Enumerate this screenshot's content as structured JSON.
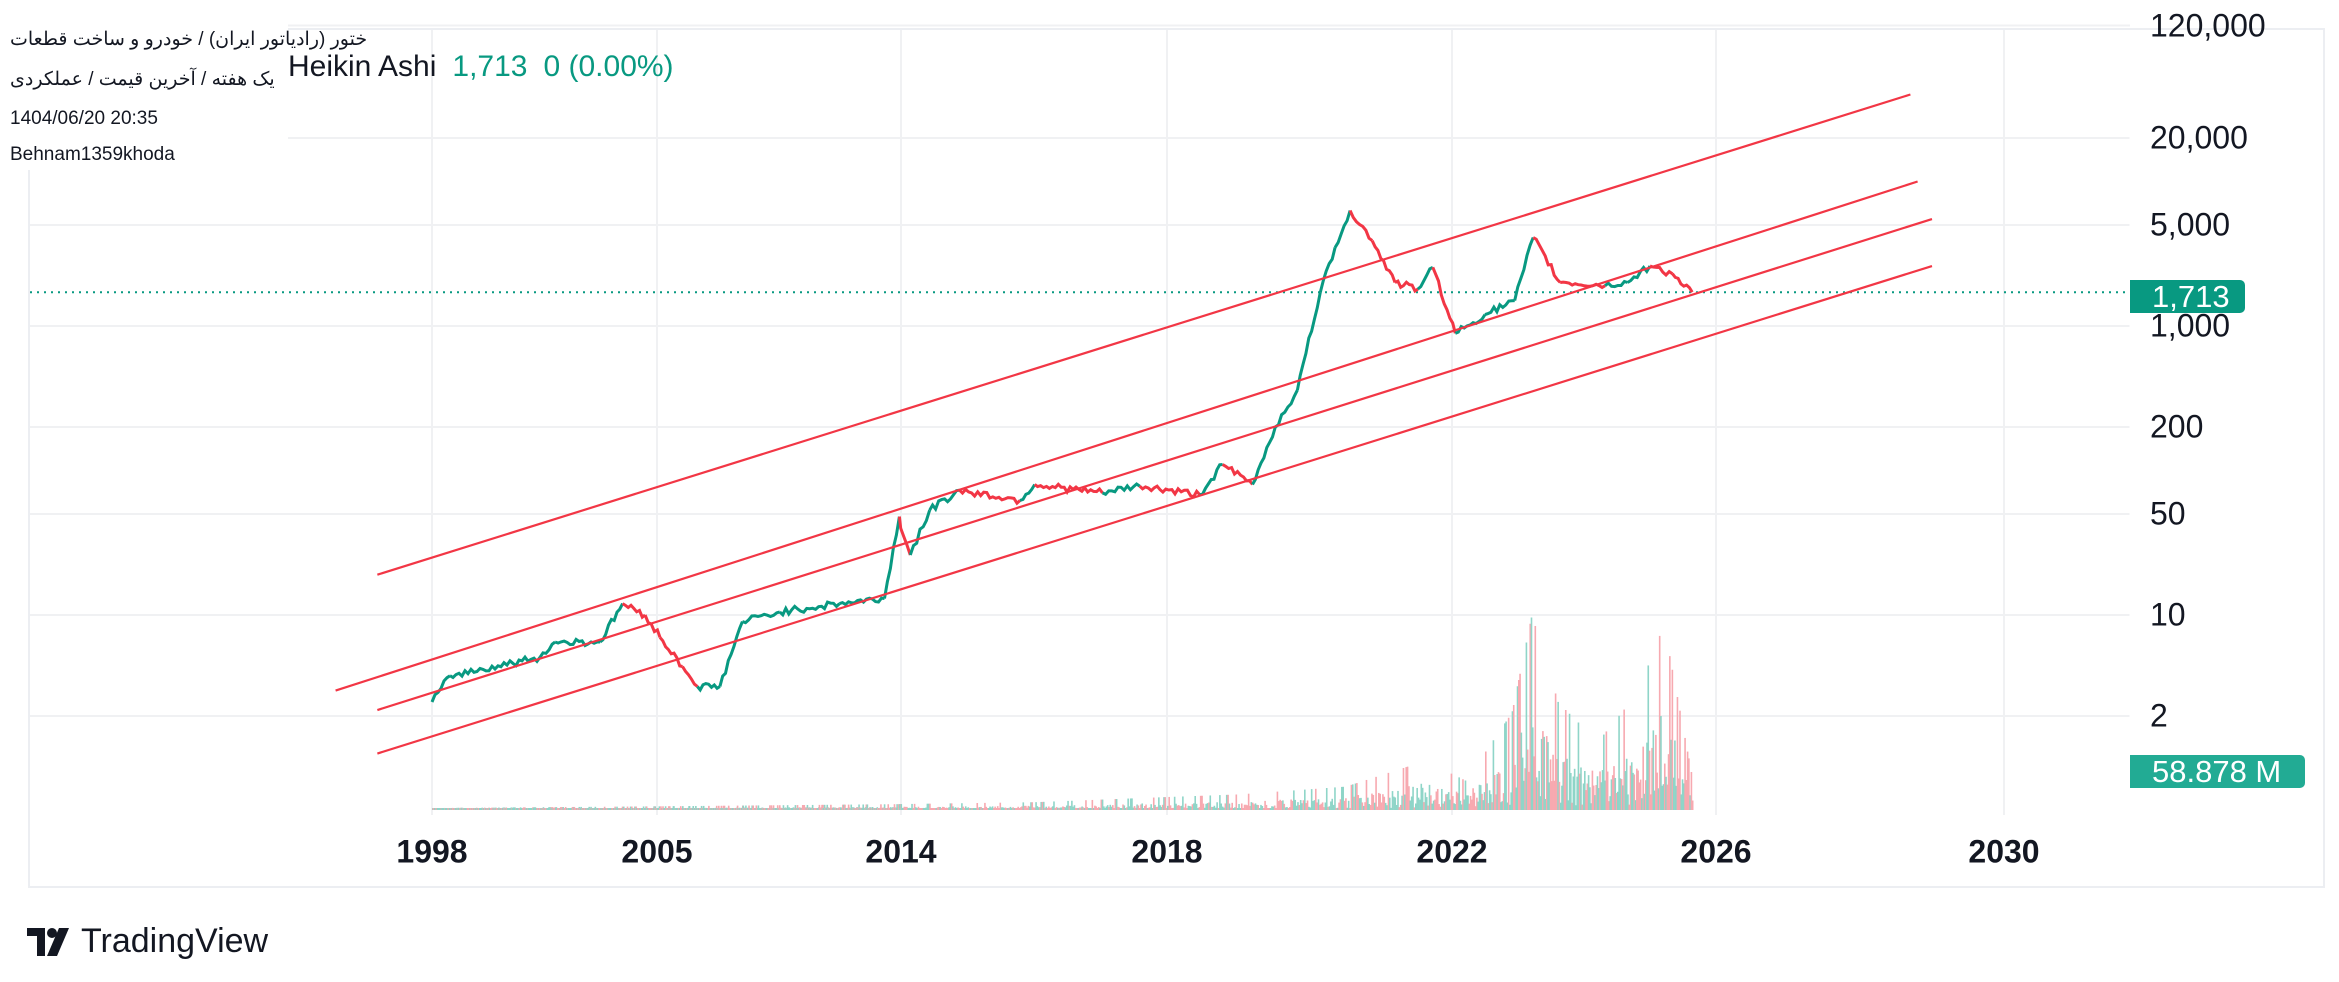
{
  "header": {
    "symbol_line": "ختور (رادیاتور ایران) / خودرو و ساخت قطعات",
    "interval_line": "یک هفته / آخرین قیمت / عملکردی",
    "datetime": "1404/06/20 20:35",
    "author": "Behnam1359khoda",
    "chart_type": "Heikin Ashi",
    "last_price": "1,713",
    "change": "0 (0.00%)"
  },
  "price_tag": "1,713",
  "volume_tag": "58.878 M",
  "brand": "TradingView",
  "colors": {
    "up": "#089981",
    "down": "#f23645",
    "channel": "#f23645",
    "vol_up": "#8fd5c8",
    "vol_down": "#f7a9b0"
  },
  "chart_data": {
    "type": "line",
    "title": "Heikin Ashi",
    "yscale": "log",
    "ylim": [
      1.3,
      130000
    ],
    "y_ticks": [
      {
        "v": 120000,
        "label": "120,000"
      },
      {
        "v": 20000,
        "label": "20,000"
      },
      {
        "v": 5000,
        "label": "5,000"
      },
      {
        "v": 1000,
        "label": "1,000"
      },
      {
        "v": 200,
        "label": "200"
      },
      {
        "v": 50,
        "label": "50"
      },
      {
        "v": 10,
        "label": "10"
      },
      {
        "v": 2,
        "label": "2"
      }
    ],
    "x_ticks": [
      {
        "t": 1998,
        "label": "1998"
      },
      {
        "t": 2005,
        "label": "2005"
      },
      {
        "t": 2014,
        "label": "2014"
      },
      {
        "t": 2018,
        "label": "2018"
      },
      {
        "t": 2022,
        "label": "2022"
      },
      {
        "t": 2026,
        "label": "2026"
      },
      {
        "t": 2030,
        "label": "2030"
      }
    ],
    "last_price": 1713,
    "series": [
      {
        "name": "price",
        "points": [
          [
            1998.0,
            2.5
          ],
          [
            1998.56,
            3.8
          ],
          [
            2001.36,
            5.1
          ],
          [
            2001.83,
            6.5
          ],
          [
            2003.23,
            6.5
          ],
          [
            2003.93,
            12
          ],
          [
            2004.63,
            10
          ],
          [
            2005.11,
            7
          ],
          [
            2005.94,
            4.4
          ],
          [
            2006.49,
            3.2
          ],
          [
            2007.32,
            3.2
          ],
          [
            2008.15,
            9
          ],
          [
            2009.53,
            10.5
          ],
          [
            2011.73,
            12
          ],
          [
            2013.39,
            13
          ],
          [
            2013.94,
            48
          ],
          [
            2014.14,
            26
          ],
          [
            2014.43,
            53
          ],
          [
            2014.88,
            73
          ],
          [
            2015.79,
            62
          ],
          [
            2016.01,
            80
          ],
          [
            2017.03,
            70
          ],
          [
            2017.59,
            78
          ],
          [
            2018.46,
            68
          ],
          [
            2018.78,
            110
          ],
          [
            2019.2,
            80
          ],
          [
            2019.52,
            200
          ],
          [
            2019.83,
            360
          ],
          [
            2020.15,
            1700
          ],
          [
            2020.36,
            3500
          ],
          [
            2020.57,
            6300
          ],
          [
            2020.88,
            3900
          ],
          [
            2021.2,
            2000
          ],
          [
            2021.52,
            1800
          ],
          [
            2021.73,
            2550
          ],
          [
            2022.05,
            890
          ],
          [
            2022.5,
            1200
          ],
          [
            2022.95,
            1500
          ],
          [
            2023.23,
            4100
          ],
          [
            2023.64,
            2000
          ],
          [
            2024.32,
            1900
          ],
          [
            2024.66,
            2000
          ],
          [
            2025.0,
            2600
          ],
          [
            2025.34,
            2300
          ],
          [
            2025.64,
            1713
          ]
        ]
      },
      {
        "name": "volume_relative",
        "points": [
          [
            1998,
            0.01
          ],
          [
            2013.9,
            0.03
          ],
          [
            2016,
            0.04
          ],
          [
            2019,
            0.08
          ],
          [
            2020.5,
            0.12
          ],
          [
            2021.6,
            0.25
          ],
          [
            2022.2,
            0.15
          ],
          [
            2022.9,
            0.5
          ],
          [
            2023.2,
            1.0
          ],
          [
            2023.6,
            0.55
          ],
          [
            2024.2,
            0.35
          ],
          [
            2024.8,
            0.6
          ],
          [
            2025.2,
            0.95
          ],
          [
            2025.64,
            0.15
          ]
        ]
      }
    ],
    "channels": [
      {
        "name": "channel-line-1",
        "start": [
          1996.3,
          19
        ],
        "end": [
          2028.7,
          40000
        ]
      },
      {
        "name": "channel-line-2",
        "start": [
          1995.0,
          3
        ],
        "end": [
          2028.8,
          10000
        ]
      },
      {
        "name": "channel-line-3",
        "start": [
          1996.3,
          2.2
        ],
        "end": [
          2029.0,
          5500
        ]
      },
      {
        "name": "channel-line-4",
        "start": [
          1996.3,
          1.1
        ],
        "end": [
          2029.0,
          2600
        ]
      }
    ]
  }
}
